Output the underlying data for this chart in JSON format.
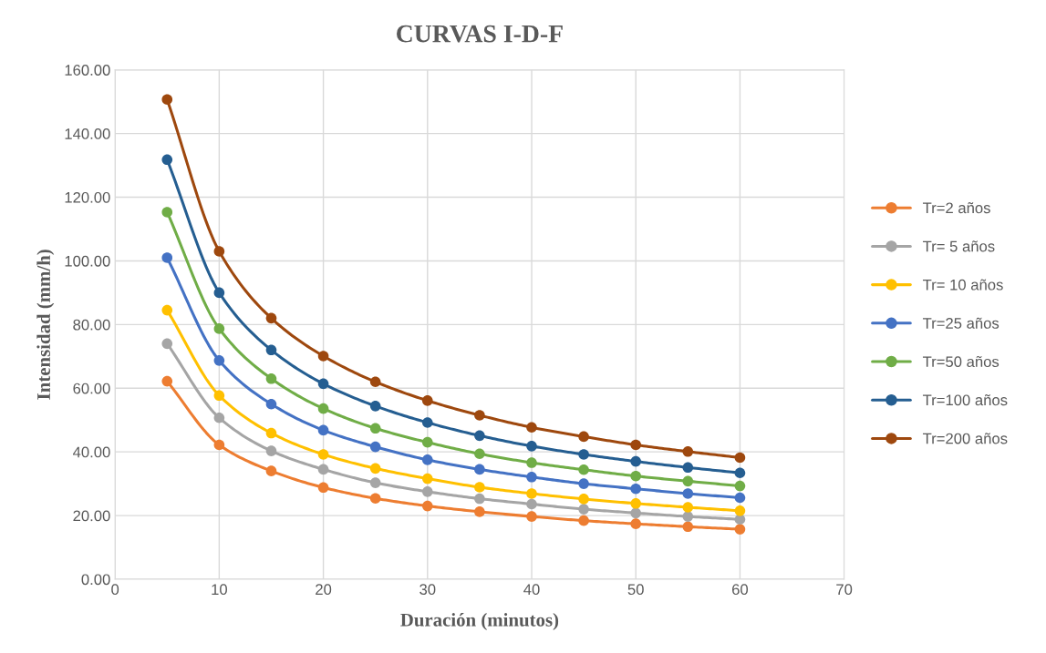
{
  "chart_data": {
    "type": "line",
    "title": "CURVAS I-D-F",
    "xlabel": "Duración (minutos)",
    "ylabel": "Intensidad (mm/h)",
    "x": [
      5,
      10,
      15,
      20,
      25,
      30,
      35,
      40,
      45,
      50,
      55,
      60
    ],
    "series": [
      {
        "name": "Tr=2 años",
        "color": "#ed7d31",
        "values": [
          62.2,
          42.2,
          34.0,
          28.8,
          25.4,
          23.0,
          21.2,
          19.7,
          18.4,
          17.4,
          16.5,
          15.7
        ]
      },
      {
        "name": "Tr= 5 años",
        "color": "#a5a5a5",
        "values": [
          74.0,
          50.7,
          40.3,
          34.5,
          30.3,
          27.5,
          25.3,
          23.6,
          22.0,
          20.8,
          19.7,
          18.8
        ]
      },
      {
        "name": "Tr= 10 años",
        "color": "#ffc000",
        "values": [
          84.5,
          57.7,
          45.9,
          39.2,
          34.8,
          31.6,
          28.9,
          26.9,
          25.2,
          23.8,
          22.6,
          21.5
        ]
      },
      {
        "name": "Tr=25 años",
        "color": "#4472c4",
        "values": [
          101.0,
          68.7,
          55.0,
          46.8,
          41.6,
          37.5,
          34.5,
          32.1,
          30.0,
          28.4,
          26.9,
          25.6
        ]
      },
      {
        "name": "Tr=50 años",
        "color": "#70ad47",
        "values": [
          115.3,
          78.7,
          63.0,
          53.6,
          47.4,
          43.0,
          39.4,
          36.6,
          34.4,
          32.4,
          30.8,
          29.3
        ]
      },
      {
        "name": "Tr=100 años",
        "color": "#255e91",
        "values": [
          131.8,
          90.0,
          72.0,
          61.4,
          54.4,
          49.2,
          45.1,
          41.8,
          39.2,
          37.0,
          35.1,
          33.4
        ]
      },
      {
        "name": "Tr=200 años",
        "color": "#9e480e",
        "values": [
          150.7,
          103.0,
          82.0,
          70.1,
          62.0,
          56.1,
          51.5,
          47.7,
          44.8,
          42.2,
          40.1,
          38.2
        ]
      }
    ],
    "xlim": [
      0,
      70
    ],
    "xticks": [
      0,
      10,
      20,
      30,
      40,
      50,
      60,
      70
    ],
    "ylim": [
      0,
      160
    ],
    "yticks": [
      {
        "value": 0,
        "label": "0.00"
      },
      {
        "value": 20,
        "label": "20.00"
      },
      {
        "value": 40,
        "label": "40.00"
      },
      {
        "value": 60,
        "label": "60.00"
      },
      {
        "value": 80,
        "label": "80.00"
      },
      {
        "value": 100,
        "label": "100.00"
      },
      {
        "value": 120,
        "label": "120.00"
      },
      {
        "value": 140,
        "label": "140.00"
      },
      {
        "value": 160,
        "label": "160.00"
      }
    ],
    "grid": true,
    "legend": "right",
    "marker": "circle",
    "line_style": "solid"
  }
}
